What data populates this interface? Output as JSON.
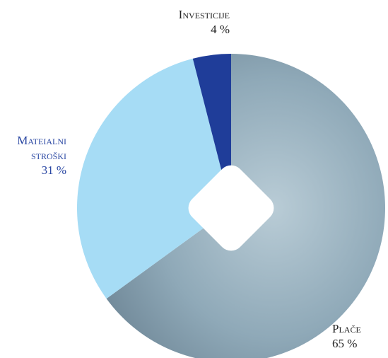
{
  "chart_data": {
    "type": "pie",
    "categories": [
      "Plače",
      "Mateialni stroški",
      "Investicije"
    ],
    "values": [
      65,
      31,
      4
    ],
    "value_labels": [
      "65 %",
      "31 %",
      "4 %"
    ],
    "colors": [
      "#8fa9b8",
      "#a6dcf5",
      "#1f3d99"
    ],
    "label_colors": [
      "#222222",
      "#2b48a3",
      "#222222"
    ]
  }
}
